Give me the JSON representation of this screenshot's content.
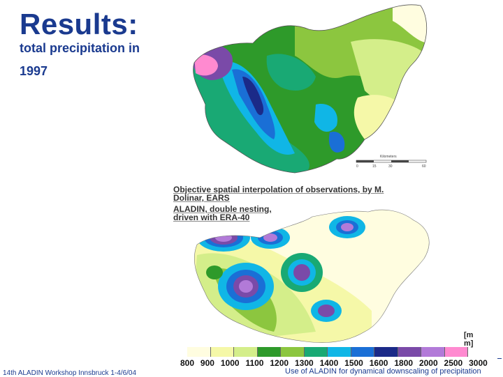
{
  "slide": {
    "title": "Results:",
    "subtitle": "total precipitation in",
    "year": "1997"
  },
  "top_map": {
    "caption": "Objective spatial interpolation of observations, by M. Dolinar, EARS",
    "scale_label": "Kilometers",
    "scale_ticks": [
      "0",
      "15",
      "30",
      "60"
    ]
  },
  "bottom_map": {
    "caption": "ALADIN, double nesting, driven with ERA-40"
  },
  "legend": {
    "unit": "[mm]",
    "ticks": [
      "800",
      "900",
      "1000",
      "1100",
      "1200",
      "1300",
      "1400",
      "1500",
      "1600",
      "1800",
      "2000",
      "2500",
      "3000"
    ],
    "colors": [
      "#fffde0",
      "#f5f8a8",
      "#d4ee8a",
      "#2e9a2a",
      "#8cc63f",
      "#19a974",
      "#10b6e6",
      "#1a6fd6",
      "#1b2a88",
      "#7a4aa8",
      "#b27ad8",
      "#ff8ad0"
    ]
  },
  "footer": {
    "left": "14th ALADIN Workshop Innsbruck 1-4/6/04",
    "right": "Use of ALADIN for dynamical downscaling of precipitation"
  }
}
